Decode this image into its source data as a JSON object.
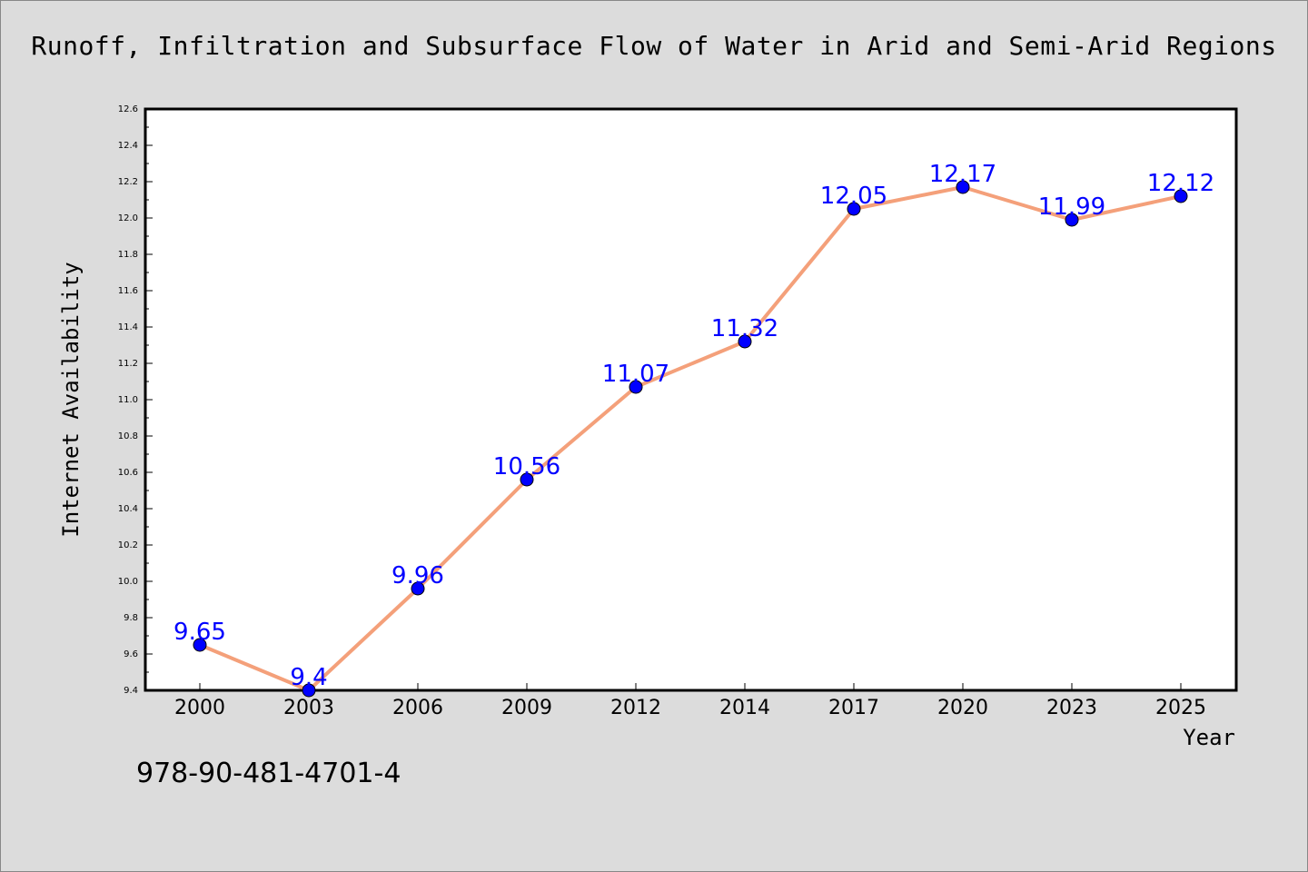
{
  "chart_data": {
    "type": "line",
    "title": "Runoff, Infiltration and Subsurface Flow of Water in Arid and Semi-Arid Regions",
    "xlabel": "Year",
    "ylabel": "Internet Availability",
    "categories": [
      "2000",
      "2003",
      "2006",
      "2009",
      "2012",
      "2014",
      "2017",
      "2020",
      "2023",
      "2025"
    ],
    "series": [
      {
        "values": [
          9.65,
          9.4,
          9.96,
          10.56,
          11.07,
          11.32,
          12.05,
          12.17,
          11.99,
          12.12
        ],
        "labels": [
          "9.65",
          "9.4",
          "9.96",
          "10.56",
          "11.07",
          "11.32",
          "12.05",
          "12.17",
          "11.99",
          "12.12"
        ]
      }
    ],
    "ylim": [
      9.4,
      12.6
    ],
    "yticks": [
      "9.4",
      "9.6",
      "9.8",
      "10.0",
      "10.2",
      "10.4",
      "10.6",
      "10.8",
      "11.0",
      "11.2",
      "11.4",
      "11.6",
      "11.8",
      "12.0",
      "12.2",
      "12.4",
      "12.6"
    ],
    "grid": false,
    "colors": {
      "line": "#f4a07a",
      "marker": "#0000ff",
      "label": "#0000ff",
      "background": "#dcdcdc",
      "plot_background": "#ffffff"
    }
  },
  "footer": {
    "code": "978-90-481-4701-4"
  }
}
